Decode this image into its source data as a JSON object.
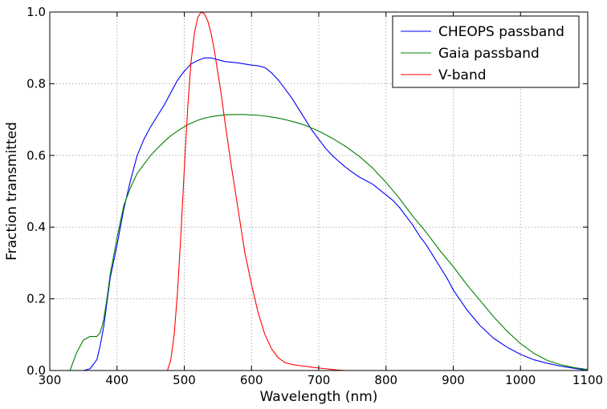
{
  "chart_data": {
    "type": "line",
    "xlabel": "Wavelength (nm)",
    "ylabel": "Fraction transmitted",
    "xlim": [
      300,
      1100
    ],
    "ylim": [
      0,
      1.0
    ],
    "xticks": [
      300,
      400,
      500,
      600,
      700,
      800,
      900,
      1000,
      1100
    ],
    "yticks": [
      0.0,
      0.2,
      0.4,
      0.6,
      0.8,
      1.0
    ],
    "xtick_labels": [
      "300",
      "400",
      "500",
      "600",
      "700",
      "800",
      "900",
      "1000",
      "1100"
    ],
    "ytick_labels": [
      "0.0",
      "0.2",
      "0.4",
      "0.6",
      "0.8",
      "1.0"
    ],
    "grid": true,
    "legend_position": "top-right",
    "series": [
      {
        "name": "CHEOPS passband",
        "color": "#0000ff",
        "x": [
          330,
          350,
          360,
          370,
          375,
          380,
          385,
          390,
          400,
          410,
          420,
          430,
          440,
          450,
          460,
          470,
          480,
          490,
          500,
          510,
          520,
          530,
          540,
          550,
          560,
          570,
          580,
          590,
          600,
          610,
          620,
          630,
          640,
          650,
          660,
          670,
          680,
          690,
          700,
          710,
          720,
          730,
          740,
          750,
          760,
          770,
          780,
          790,
          800,
          810,
          820,
          830,
          840,
          850,
          860,
          870,
          880,
          890,
          900,
          920,
          940,
          960,
          980,
          1000,
          1020,
          1040,
          1060,
          1080,
          1100
        ],
        "y": [
          0.0,
          0.0,
          0.005,
          0.03,
          0.07,
          0.12,
          0.19,
          0.26,
          0.35,
          0.45,
          0.53,
          0.6,
          0.645,
          0.68,
          0.71,
          0.74,
          0.775,
          0.81,
          0.835,
          0.855,
          0.865,
          0.872,
          0.872,
          0.867,
          0.862,
          0.86,
          0.858,
          0.855,
          0.852,
          0.85,
          0.845,
          0.83,
          0.81,
          0.785,
          0.76,
          0.73,
          0.7,
          0.67,
          0.645,
          0.62,
          0.6,
          0.583,
          0.567,
          0.553,
          0.54,
          0.53,
          0.52,
          0.505,
          0.49,
          0.475,
          0.455,
          0.43,
          0.405,
          0.375,
          0.35,
          0.32,
          0.29,
          0.26,
          0.225,
          0.17,
          0.125,
          0.09,
          0.065,
          0.045,
          0.03,
          0.02,
          0.012,
          0.006,
          0.0
        ]
      },
      {
        "name": "Gaia passband",
        "color": "#008000",
        "x": [
          320,
          330,
          340,
          350,
          360,
          370,
          375,
          380,
          385,
          390,
          400,
          410,
          420,
          430,
          440,
          450,
          460,
          470,
          480,
          490,
          500,
          510,
          520,
          530,
          540,
          550,
          560,
          570,
          580,
          590,
          600,
          610,
          620,
          630,
          640,
          650,
          660,
          670,
          680,
          690,
          700,
          720,
          740,
          760,
          780,
          800,
          820,
          840,
          860,
          880,
          900,
          920,
          940,
          960,
          980,
          1000,
          1020,
          1040,
          1060,
          1080,
          1100
        ],
        "y": [
          0.0,
          0.0,
          0.05,
          0.085,
          0.095,
          0.095,
          0.105,
          0.14,
          0.2,
          0.27,
          0.37,
          0.46,
          0.51,
          0.55,
          0.575,
          0.6,
          0.62,
          0.638,
          0.655,
          0.668,
          0.68,
          0.69,
          0.698,
          0.704,
          0.708,
          0.711,
          0.713,
          0.714,
          0.714,
          0.714,
          0.713,
          0.712,
          0.71,
          0.707,
          0.704,
          0.7,
          0.695,
          0.69,
          0.684,
          0.676,
          0.668,
          0.648,
          0.625,
          0.598,
          0.565,
          0.525,
          0.48,
          0.43,
          0.385,
          0.335,
          0.29,
          0.24,
          0.195,
          0.15,
          0.11,
          0.075,
          0.048,
          0.028,
          0.016,
          0.008,
          0.003
        ]
      },
      {
        "name": "V-band",
        "color": "#ff0000",
        "x": [
          470,
          475,
          480,
          485,
          490,
          495,
          500,
          505,
          510,
          515,
          520,
          525,
          530,
          535,
          540,
          545,
          550,
          555,
          560,
          570,
          580,
          590,
          600,
          610,
          620,
          630,
          640,
          650,
          660,
          670,
          680,
          690,
          700,
          710,
          720,
          730,
          740
        ],
        "y": [
          0.0,
          0.0,
          0.03,
          0.1,
          0.22,
          0.38,
          0.56,
          0.73,
          0.86,
          0.94,
          0.985,
          1.0,
          0.995,
          0.975,
          0.94,
          0.89,
          0.83,
          0.77,
          0.7,
          0.57,
          0.45,
          0.33,
          0.24,
          0.16,
          0.1,
          0.06,
          0.035,
          0.022,
          0.017,
          0.014,
          0.012,
          0.009,
          0.007,
          0.005,
          0.003,
          0.001,
          0.0
        ]
      }
    ]
  }
}
